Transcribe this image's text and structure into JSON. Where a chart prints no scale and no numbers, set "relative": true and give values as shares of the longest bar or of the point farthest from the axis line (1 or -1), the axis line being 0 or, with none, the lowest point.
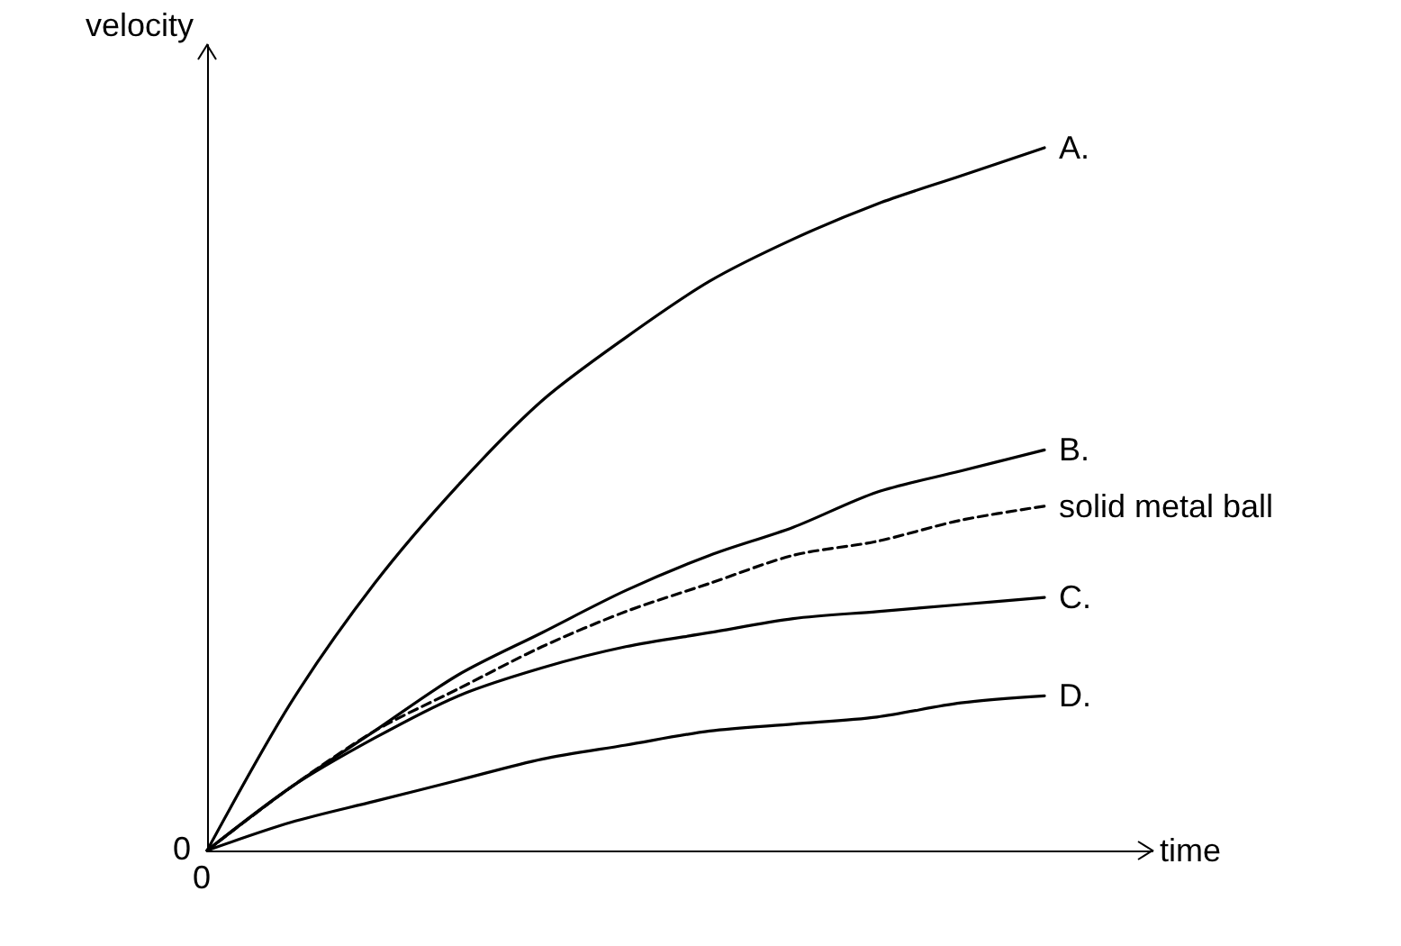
{
  "chart_data": {
    "type": "line",
    "relative": true,
    "xlabel": "time",
    "ylabel": "velocity",
    "categories": [
      null,
      null,
      null,
      null,
      null,
      null,
      null,
      null,
      null,
      null,
      null
    ],
    "series": [
      {
        "name": "A.",
        "color": "#000000",
        "values": [
          0,
          0.21,
          0.38,
          0.52,
          0.64,
          0.73,
          0.81,
          0.87,
          0.92,
          0.96,
          1
        ]
      },
      {
        "name": "B.",
        "color": "#000000",
        "values": [
          0,
          0.09,
          0.17,
          0.25,
          0.31,
          0.37,
          0.42,
          0.46,
          0.51,
          0.54,
          0.57
        ]
      },
      {
        "name": "solid metal ball",
        "color": "#000000",
        "line_style": "dashed",
        "values": [
          0,
          0.09,
          0.17,
          0.23,
          0.29,
          0.34,
          0.38,
          0.42,
          0.44,
          0.47,
          0.49
        ]
      },
      {
        "name": "C.",
        "color": "#000000",
        "values": [
          0,
          0.09,
          0.16,
          0.22,
          0.26,
          0.29,
          0.31,
          0.33,
          0.34,
          0.35,
          0.36
        ]
      },
      {
        "name": "D.",
        "color": "#000000",
        "values": [
          0,
          0.04,
          0.07,
          0.1,
          0.13,
          0.15,
          0.17,
          0.18,
          0.19,
          0.21,
          0.22
        ]
      }
    ],
    "annotations": [
      "0",
      "0"
    ],
    "legend": false,
    "grid": false,
    "marker": "none",
    "line_style": "solid"
  }
}
